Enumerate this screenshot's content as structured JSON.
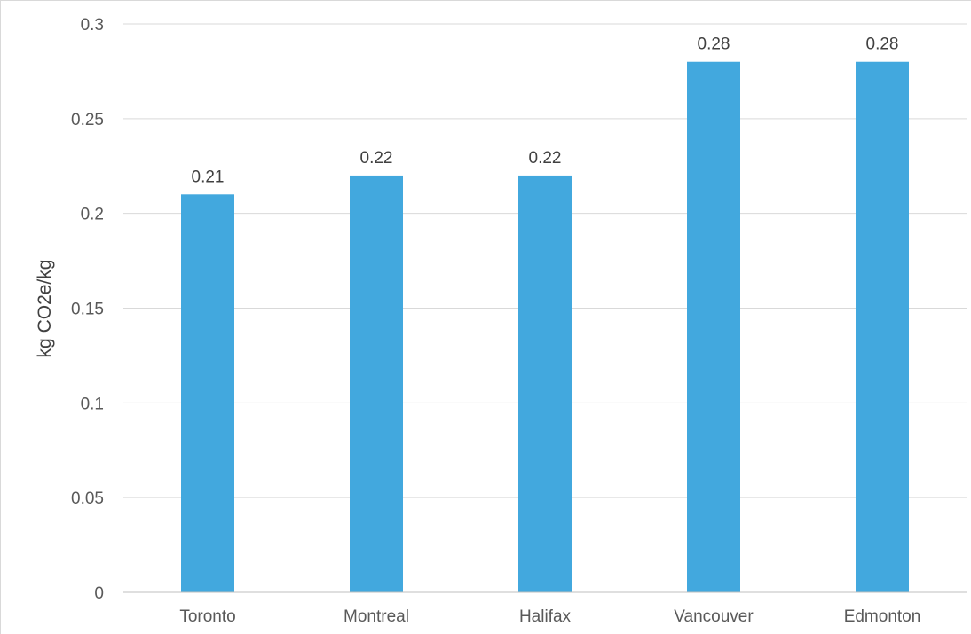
{
  "chart_data": {
    "type": "bar",
    "title": "",
    "xlabel": "",
    "ylabel": "kg CO2e/kg",
    "categories": [
      "Toronto",
      "Montreal",
      "Halifax",
      "Vancouver",
      "Edmonton"
    ],
    "values": [
      0.21,
      0.22,
      0.22,
      0.28,
      0.28
    ],
    "data_labels": [
      "0.21",
      "0.22",
      "0.22",
      "0.28",
      "0.28"
    ],
    "ylim": [
      0,
      0.3
    ],
    "y_ticks": [
      0,
      0.05,
      0.1,
      0.15,
      0.2,
      0.25,
      0.3
    ],
    "y_tick_labels": [
      "0",
      "0.05",
      "0.1",
      "0.15",
      "0.2",
      "0.25",
      "0.3"
    ],
    "grid": true,
    "legend": "none",
    "colors": {
      "bar": "#42A8DE"
    }
  }
}
